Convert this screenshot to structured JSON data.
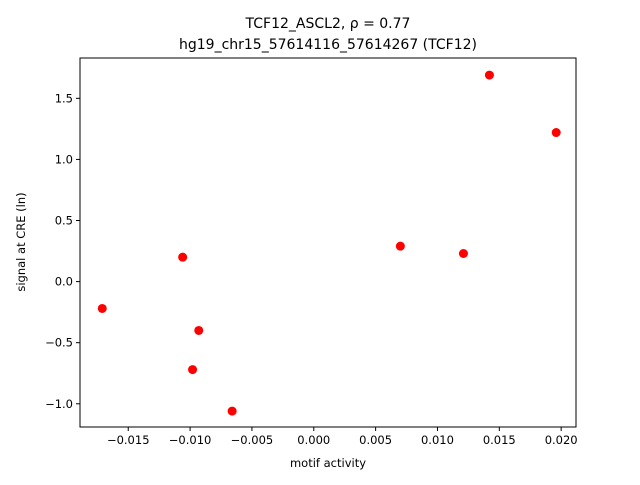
{
  "chart_data": {
    "type": "scatter",
    "title_line1": "TCF12_ASCL2, ρ = 0.77",
    "title_line2": "hg19_chr15_57614116_57614267 (TCF12)",
    "xlabel": "motif activity",
    "ylabel": "signal at CRE (ln)",
    "xlim": [
      -0.0189,
      0.0212
    ],
    "ylim": [
      -1.19,
      1.83
    ],
    "xticks": [
      -0.015,
      -0.01,
      -0.005,
      0.0,
      0.005,
      0.01,
      0.015,
      0.02
    ],
    "xtick_labels": [
      "−0.015",
      "−0.010",
      "−0.005",
      "0.000",
      "0.005",
      "0.010",
      "0.015",
      "0.020"
    ],
    "yticks": [
      -1.0,
      -0.5,
      0.0,
      0.5,
      1.0,
      1.5
    ],
    "ytick_labels": [
      "−1.0",
      "−0.5",
      "0.0",
      "0.5",
      "1.0",
      "1.5"
    ],
    "grid": false,
    "point_color": "#ff0000",
    "points": [
      {
        "x": -0.0171,
        "y": -0.22
      },
      {
        "x": -0.0106,
        "y": 0.2
      },
      {
        "x": -0.0093,
        "y": -0.4
      },
      {
        "x": -0.0098,
        "y": -0.72
      },
      {
        "x": -0.0066,
        "y": -1.06
      },
      {
        "x": 0.007,
        "y": 0.29
      },
      {
        "x": 0.0121,
        "y": 0.23
      },
      {
        "x": 0.0142,
        "y": 1.69
      },
      {
        "x": 0.0196,
        "y": 1.22
      }
    ]
  }
}
